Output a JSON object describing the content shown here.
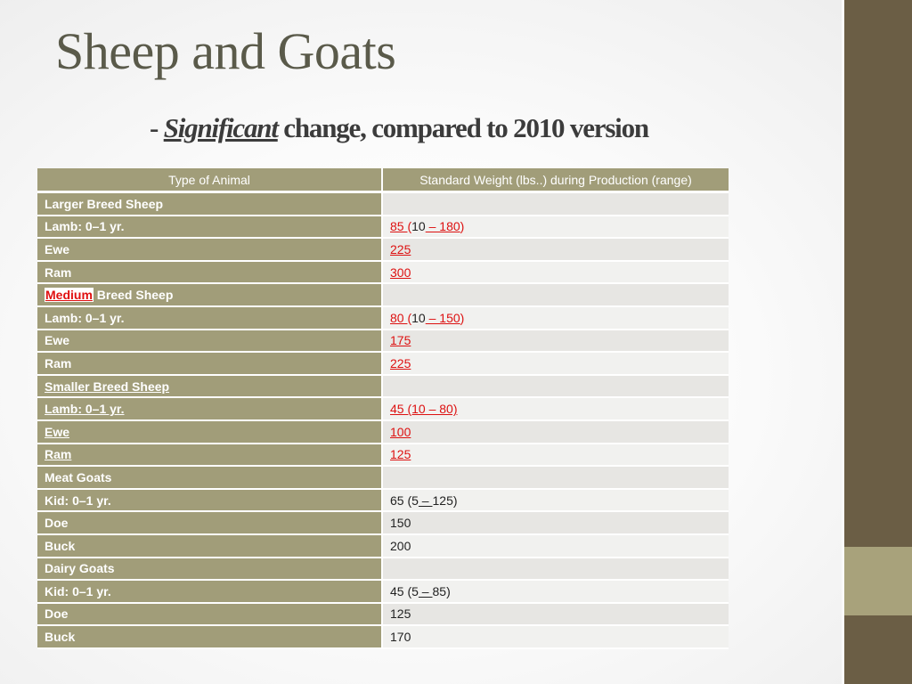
{
  "slide": {
    "title": "Sheep and Goats",
    "subtitle_dash": "-",
    "subtitle_emph": "Significant",
    "subtitle_rest": " change, compared to 2010 version"
  },
  "table": {
    "headers": [
      "Type of Animal",
      "Standard Weight (lbs..) during Production (range)"
    ],
    "rows": [
      {
        "animal": "Larger Breed Sheep",
        "weight": ""
      },
      {
        "animal": "Lamb: 0–1 yr.",
        "w1": "85 ",
        "w2": "(",
        "w3": "10",
        "w4": " – 180",
        "w5": ")"
      },
      {
        "animal": "Ewe",
        "weight": "225"
      },
      {
        "animal": "Ram",
        "weight": "300"
      },
      {
        "animal_a": "Medium",
        "animal_b": " Breed Sheep",
        "weight": ""
      },
      {
        "animal": "Lamb: 0–1 yr.",
        "w1": "80 ",
        "w2": "(",
        "w3": "10",
        "w4": " – 150",
        "w5": ")"
      },
      {
        "animal": "Ewe",
        "weight": "175"
      },
      {
        "animal": "Ram",
        "weight": "225"
      },
      {
        "animal": "Smaller Breed Sheep",
        "weight": ""
      },
      {
        "animal": "Lamb: 0–1 yr.",
        "weight": "45 (10 – 80)"
      },
      {
        "animal": "Ewe",
        "weight": "100"
      },
      {
        "animal": "Ram",
        "weight": "125"
      },
      {
        "animal": "Meat Goats",
        "weight": ""
      },
      {
        "animal": "Kid: 0–1 yr.",
        "w1": "65 (5",
        "w2": " – ",
        "w3": "125)"
      },
      {
        "animal": "Doe",
        "weight": "150"
      },
      {
        "animal": "Buck",
        "weight": "200"
      },
      {
        "animal": "Dairy Goats",
        "weight": ""
      },
      {
        "animal": "Kid: 0–1 yr.",
        "w1": "45 (5",
        "w2": " – ",
        "w3": "85)"
      },
      {
        "animal": "Doe",
        "weight": "125"
      },
      {
        "animal": "Buck",
        "weight": "170"
      }
    ]
  },
  "colors": {
    "header_bg": "#a19d79",
    "sidebar_dark": "#6b5e45",
    "sidebar_accent": "#a8a27b",
    "change_red": "#dd1111"
  }
}
